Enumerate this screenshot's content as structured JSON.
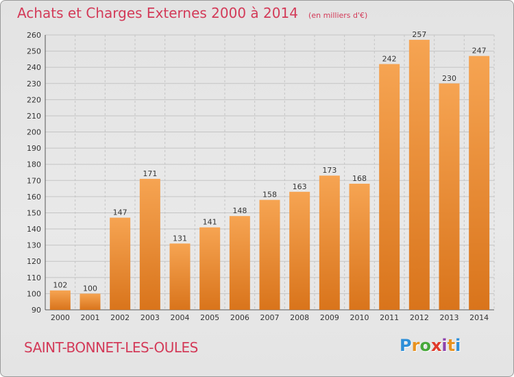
{
  "header": {
    "title": "Achats et Charges Externes 2000 à 2014",
    "subtitle": "(en milliers d'€)"
  },
  "footer": {
    "commune": "SAINT-BONNET-LES-OULES"
  },
  "logo": {
    "letters": [
      "P",
      "r",
      "o",
      "x",
      "i",
      "t",
      "i"
    ],
    "colors": [
      "#2e8fd8",
      "#e89220",
      "#46a83a",
      "#e03a2a",
      "#8e44ad",
      "#e89220",
      "#2e8fd8"
    ]
  },
  "chart_data": {
    "type": "bar",
    "title": "Achats et Charges Externes 2000 à 2014",
    "subtitle": "(en milliers d'€)",
    "categories": [
      "2000",
      "2001",
      "2002",
      "2003",
      "2004",
      "2005",
      "2006",
      "2007",
      "2008",
      "2009",
      "2010",
      "2011",
      "2012",
      "2013",
      "2014"
    ],
    "values": [
      102,
      100,
      147,
      171,
      131,
      141,
      148,
      158,
      163,
      173,
      168,
      242,
      257,
      230,
      247
    ],
    "ylim": [
      90,
      260
    ],
    "yticks": [
      90,
      100,
      110,
      120,
      130,
      140,
      150,
      160,
      170,
      180,
      190,
      200,
      210,
      220,
      230,
      240,
      250,
      260
    ],
    "bar_color": "#f29a3b",
    "grid": true,
    "xlabel": "",
    "ylabel": ""
  }
}
